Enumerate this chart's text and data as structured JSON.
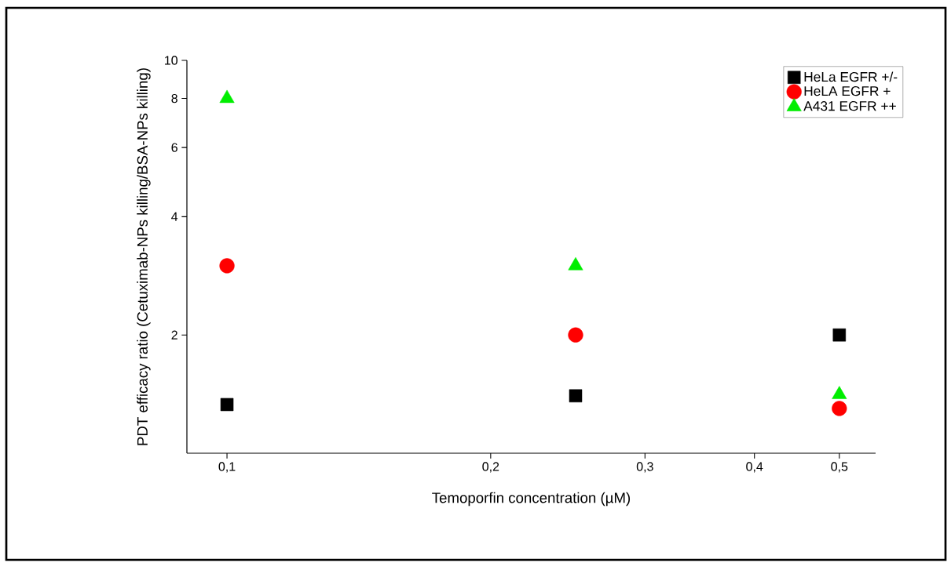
{
  "chart_data": {
    "type": "scatter",
    "xlabel": "Temoporfin concentration (µM)",
    "ylabel": "PDT efficacy ratio (Cetuximab-NPs killing/BSA-NPs killing)",
    "x": [
      0.1,
      0.25,
      0.5
    ],
    "series": [
      {
        "name": "HeLa EGFR +/-",
        "color": "#000000",
        "marker": "square",
        "values": [
          1.33,
          1.4,
          2.0
        ]
      },
      {
        "name": "HeLA EGFR +",
        "color": "#ff0000",
        "marker": "circle",
        "values": [
          3.0,
          2.0,
          1.3
        ]
      },
      {
        "name": "A431 EGFR ++",
        "color": "#00ee00",
        "marker": "triangle",
        "values": [
          8.0,
          3.0,
          1.41
        ]
      }
    ],
    "log": "xy",
    "xlim": [
      0.09,
      0.55
    ],
    "ylim": [
      1,
      10
    ],
    "xticks": [
      {
        "value": 0.1,
        "label": "0,1"
      },
      {
        "value": 0.2,
        "label": "0,2"
      },
      {
        "value": 0.3,
        "label": "0,3"
      },
      {
        "value": 0.4,
        "label": "0,4"
      },
      {
        "value": 0.5,
        "label": "0,5"
      }
    ],
    "yticks": [
      2,
      4,
      6,
      8,
      10
    ],
    "legend": "top right"
  }
}
